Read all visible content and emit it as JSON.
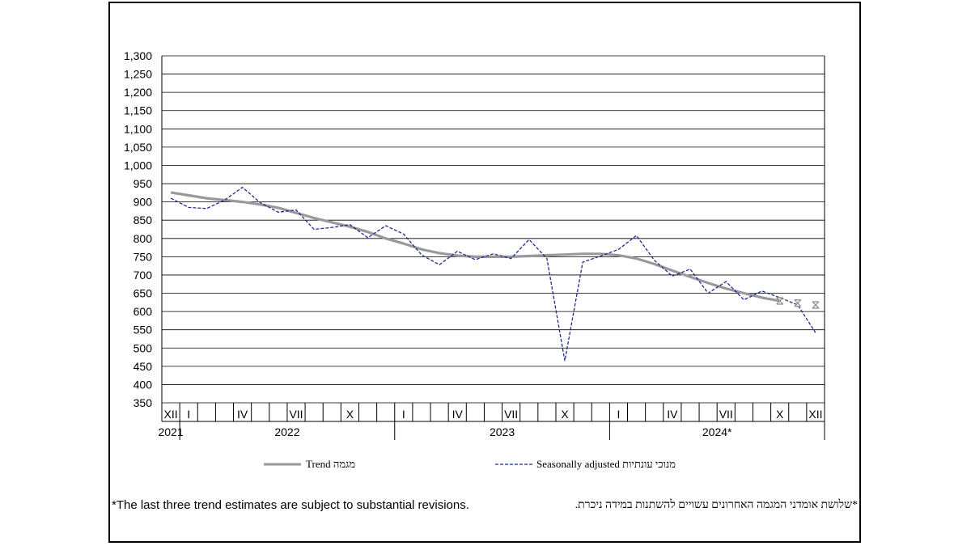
{
  "chart_data": {
    "type": "line",
    "title": "",
    "xlabel": "",
    "ylabel": "",
    "ylim": [
      350,
      1300
    ],
    "yticks": [
      "1,300",
      "1,250",
      "1,200",
      "1,150",
      "1,100",
      "1,050",
      "1,000",
      "950",
      "900",
      "850",
      "800",
      "750",
      "700",
      "650",
      "600",
      "550",
      "500",
      "450",
      "400",
      "350"
    ],
    "x": [
      "2021-12",
      "2022-01",
      "2022-02",
      "2022-03",
      "2022-04",
      "2022-05",
      "2022-06",
      "2022-07",
      "2022-08",
      "2022-09",
      "2022-10",
      "2022-11",
      "2022-12",
      "2023-01",
      "2023-02",
      "2023-03",
      "2023-04",
      "2023-05",
      "2023-06",
      "2023-07",
      "2023-08",
      "2023-09",
      "2023-10",
      "2023-11",
      "2023-12",
      "2024-01",
      "2024-02",
      "2024-03",
      "2024-04",
      "2024-05",
      "2024-06",
      "2024-07",
      "2024-08",
      "2024-09",
      "2024-10",
      "2024-11",
      "2024-12"
    ],
    "month_tick_labels": [
      "XII",
      "I",
      "",
      "",
      "IV",
      "",
      "",
      "VII",
      "",
      "",
      "X",
      "",
      "",
      "I",
      "",
      "",
      "IV",
      "",
      "",
      "VII",
      "",
      "",
      "X",
      "",
      "",
      "I",
      "",
      "",
      "IV",
      "",
      "",
      "VII",
      "",
      "",
      "X",
      "",
      "XII"
    ],
    "year_labels": [
      "2021",
      "2022",
      "2023",
      "2024*"
    ],
    "grid": true,
    "legend_placement": "bottom",
    "series": [
      {
        "name": "Trend מגמה",
        "color": "#999999",
        "style": "solid",
        "values": [
          926,
          918,
          910,
          905,
          900,
          893,
          884,
          870,
          856,
          844,
          832,
          818,
          800,
          786,
          770,
          760,
          753,
          750,
          750,
          750,
          752,
          754,
          756,
          758,
          758,
          754,
          745,
          730,
          712,
          695,
          678,
          663,
          650,
          638,
          629,
          623,
          618
        ],
        "provisional_from_index": 34
      },
      {
        "name": "Seasonally adjusted מנוכי עונתיות",
        "color": "#1f2d8a",
        "style": "dashed",
        "values": [
          910,
          885,
          882,
          905,
          940,
          898,
          872,
          878,
          825,
          830,
          838,
          802,
          835,
          812,
          755,
          728,
          765,
          742,
          758,
          745,
          797,
          745,
          465,
          735,
          752,
          770,
          808,
          740,
          697,
          716,
          650,
          682,
          632,
          656,
          638,
          618,
          542
        ]
      }
    ]
  },
  "notes": {
    "english": "*The last three trend estimates are subject to substantial revisions.",
    "hebrew": "*שלושת אומדני המגמה האחרונים עשויים להשתנות במידה ניכרת."
  }
}
